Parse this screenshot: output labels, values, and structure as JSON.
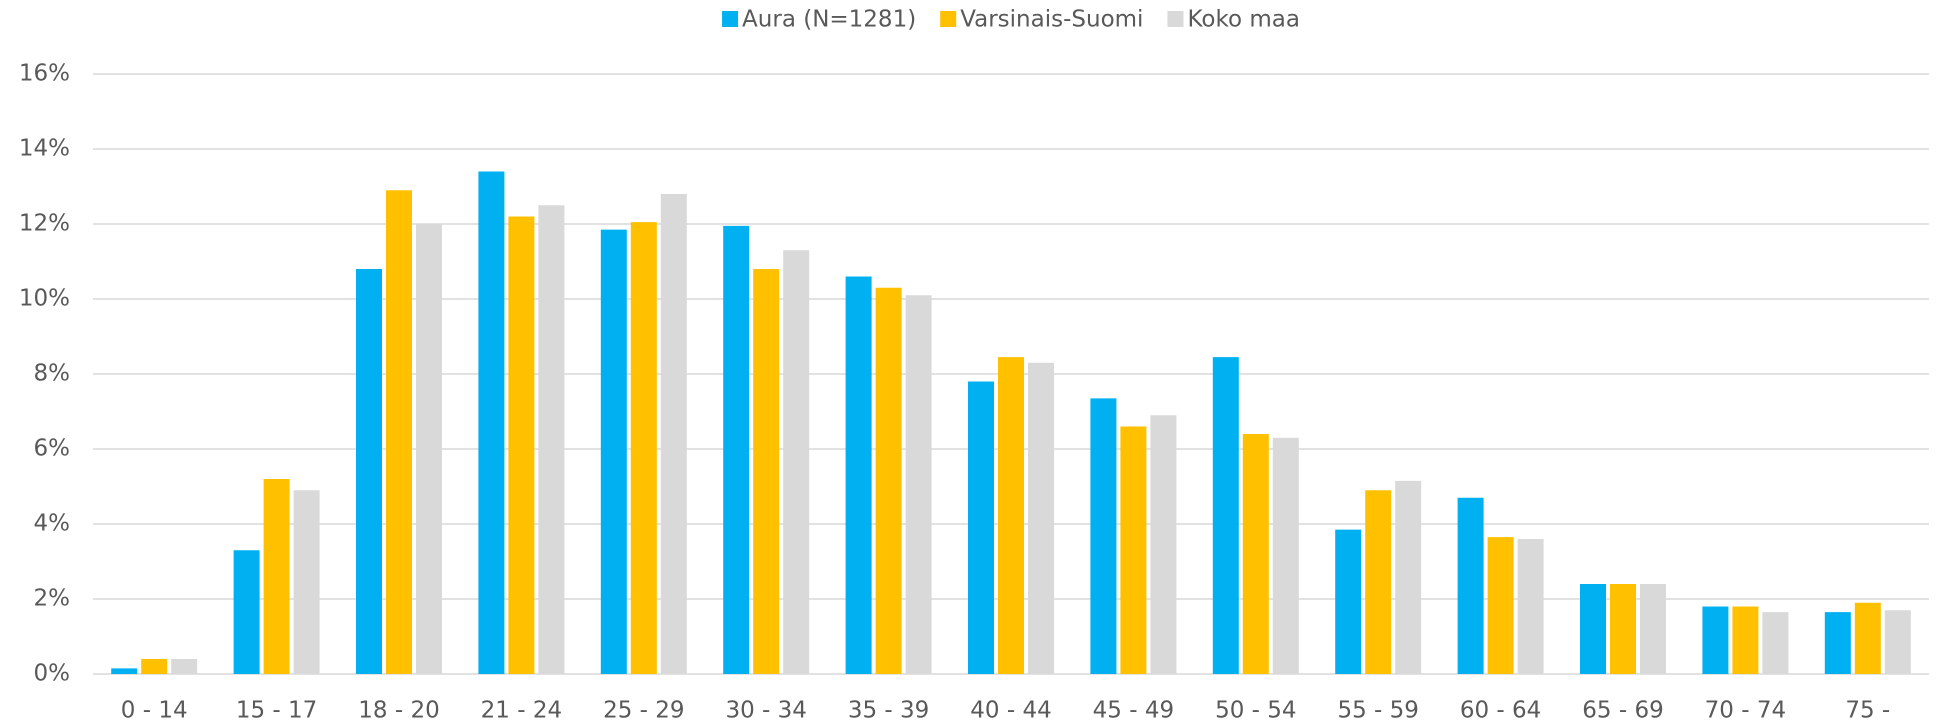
{
  "chart_data": {
    "type": "bar",
    "categories": [
      "0 - 14",
      "15 - 17",
      "18 - 20",
      "21 - 24",
      "25 - 29",
      "30 - 34",
      "35 - 39",
      "40 - 44",
      "45 - 49",
      "50 - 54",
      "55 - 59",
      "60 - 64",
      "65 - 69",
      "70 - 74",
      "75 -"
    ],
    "series": [
      {
        "name": "Aura (N=1281)",
        "color": "#00b0f0",
        "values": [
          0.15,
          3.3,
          10.8,
          13.4,
          11.85,
          11.95,
          10.6,
          7.8,
          7.35,
          8.45,
          3.85,
          4.7,
          2.4,
          1.8,
          1.65
        ]
      },
      {
        "name": "Varsinais-Suomi",
        "color": "#ffc000",
        "values": [
          0.4,
          5.2,
          12.9,
          12.2,
          12.05,
          10.8,
          10.3,
          8.45,
          6.6,
          6.4,
          4.9,
          3.65,
          2.4,
          1.8,
          1.9
        ]
      },
      {
        "name": "Koko maa",
        "color": "#d9d9d9",
        "values": [
          0.4,
          4.9,
          12.0,
          12.5,
          12.8,
          11.3,
          10.1,
          8.3,
          6.9,
          6.3,
          5.15,
          3.6,
          2.4,
          1.65,
          1.7
        ]
      }
    ],
    "ylim": [
      0,
      16
    ],
    "yticks": [
      {
        "value": 0,
        "label": "0%"
      },
      {
        "value": 2,
        "label": "2%"
      },
      {
        "value": 4,
        "label": "4%"
      },
      {
        "value": 6,
        "label": "6%"
      },
      {
        "value": 8,
        "label": "8%"
      },
      {
        "value": 10,
        "label": "10%"
      },
      {
        "value": 12,
        "label": "12%"
      },
      {
        "value": 14,
        "label": "14%"
      },
      {
        "value": 16,
        "label": "16%"
      }
    ],
    "grid": true,
    "legend": "top"
  }
}
